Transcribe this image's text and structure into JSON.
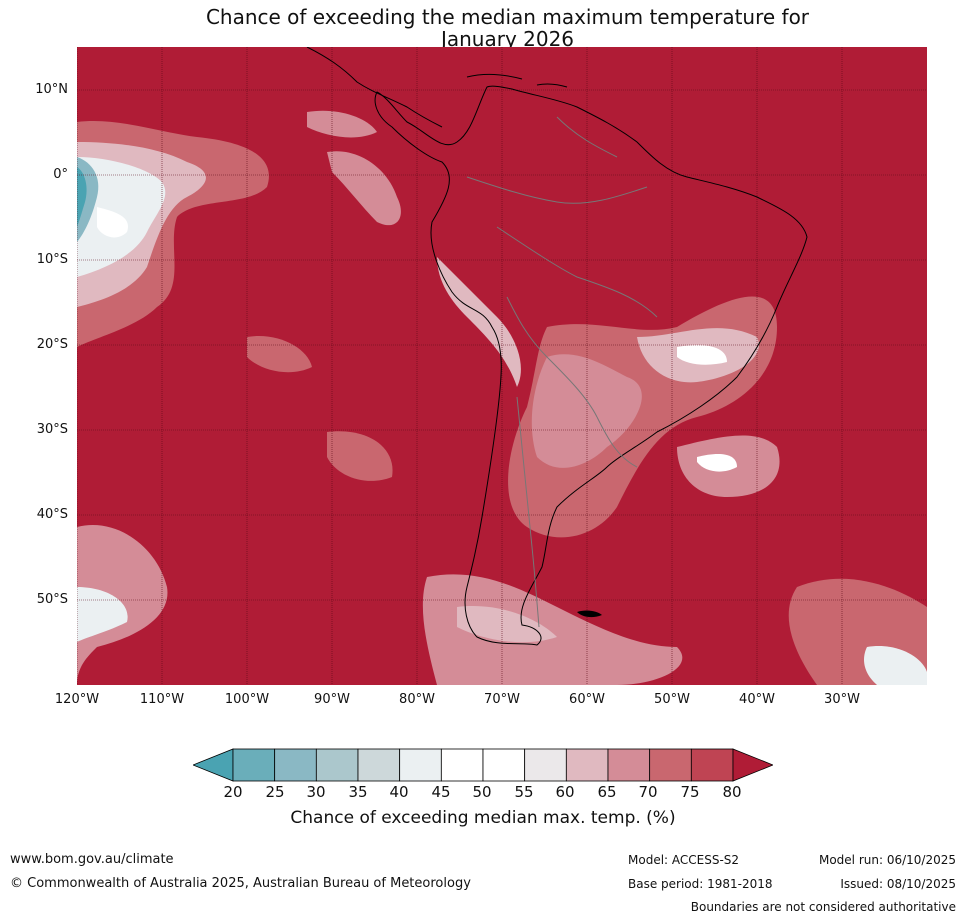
{
  "title_line1": "Chance of exceeding the median maximum temperature for",
  "title_line2": "January 2026",
  "lat_labels": [
    "10°N",
    "0°",
    "10°S",
    "20°S",
    "30°S",
    "40°S",
    "50°S"
  ],
  "lon_labels": [
    "120°W",
    "110°W",
    "100°W",
    "90°W",
    "80°W",
    "70°W",
    "60°W",
    "50°W",
    "40°W",
    "30°W"
  ],
  "colorbar": {
    "ticks": [
      "20",
      "25",
      "30",
      "35",
      "40",
      "45",
      "50",
      "55",
      "60",
      "65",
      "70",
      "75",
      "80"
    ],
    "label": "Chance of exceeding median max. temp. (%)",
    "colors": [
      "#4aa3b2",
      "#6aaeba",
      "#8ab8c4",
      "#abc7cc",
      "#cdd8da",
      "#ebf0f2",
      "#ffffff",
      "#ffffff",
      "#ebe8ea",
      "#e0b9c0",
      "#d48c97",
      "#c9676f",
      "#bf4453",
      "#b01c36"
    ],
    "low_color": "#4aa3b2",
    "high_color": "#b01c36"
  },
  "footer": {
    "website": "www.bom.gov.au/climate",
    "copyright": "© Commonwealth of Australia 2025, Australian Bureau of Meteorology",
    "model": "Model: ACCESS-S2",
    "base_period": "Base period: 1981-2018",
    "model_run": "Model run: 06/10/2025",
    "issued": "Issued: 08/10/2025",
    "disclaimer": "Boundaries are not considered authoritative"
  }
}
